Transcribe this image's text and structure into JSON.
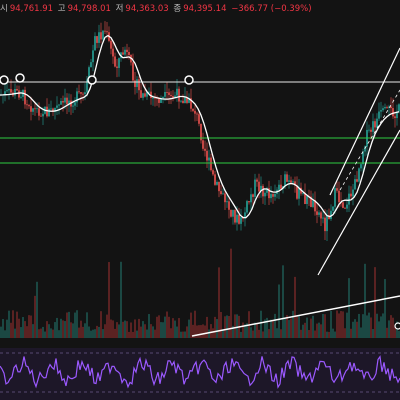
{
  "header": {
    "open_label": "시",
    "open_value": "94,761.91",
    "high_label": "고",
    "high_value": "94,798.01",
    "low_label": "저",
    "low_value": "94,363.03",
    "close_label": "종",
    "close_value": "94,395.14",
    "change_value": "−366.77 (−0.39%)"
  },
  "colors": {
    "background": "#131313",
    "candle_up": "#26a69a",
    "candle_down": "#ef5350",
    "moving_average": "#ffffff",
    "support_lines": "#2ecc40",
    "trend_lines": "#ffffff",
    "rsi_line": "#9b59ff",
    "rsi_band_fill": "#1f1630"
  }
}
